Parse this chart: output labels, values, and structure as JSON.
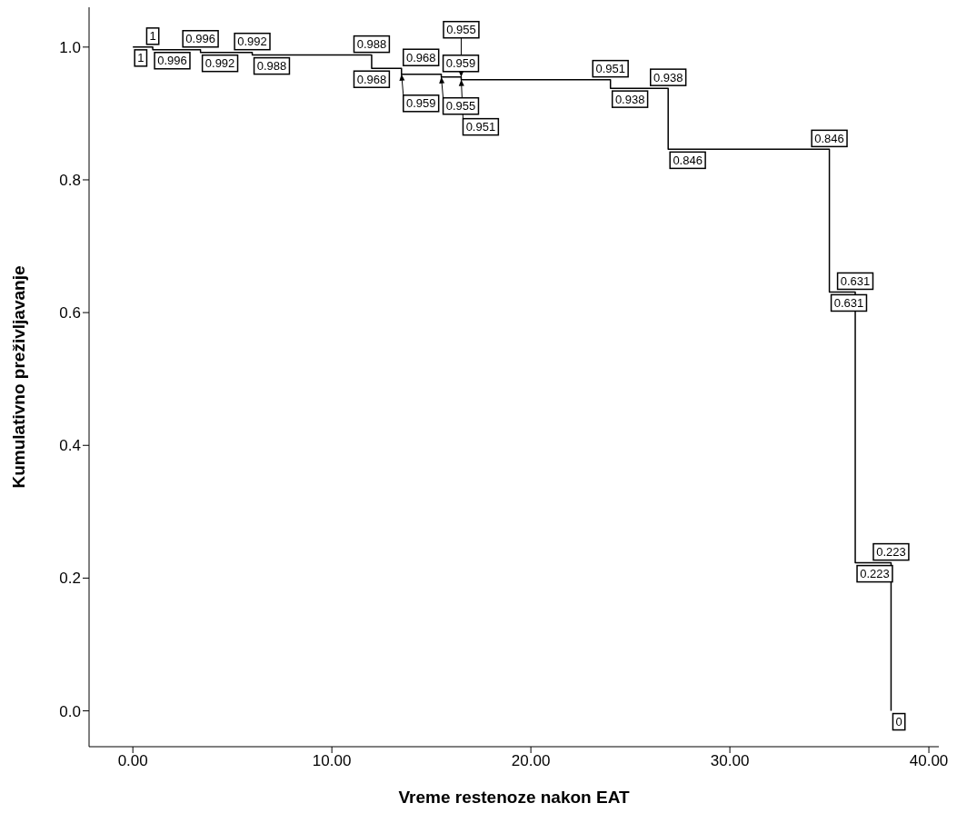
{
  "chart_data": {
    "type": "step",
    "xlabel": "Vreme restenoze nakon EAT",
    "ylabel": "Kumulativno preživljavanje",
    "x": [
      0,
      1.0,
      3.4,
      6.0,
      12.0,
      13.5,
      15.5,
      16.5,
      24.0,
      26.9,
      35.0,
      36.3,
      38.1
    ],
    "values": [
      1,
      0.996,
      0.992,
      0.988,
      0.968,
      0.959,
      0.955,
      0.951,
      0.938,
      0.846,
      0.631,
      0.223,
      0
    ],
    "color": "#000000",
    "marker": "none",
    "line_style": "solid",
    "grid": false,
    "legend": false,
    "xlim": [
      -2.2,
      40.5
    ],
    "xticks": [
      {
        "value": 0,
        "label": "0.00"
      },
      {
        "value": 10,
        "label": "10.00"
      },
      {
        "value": 20,
        "label": "20.00"
      },
      {
        "value": 30,
        "label": "30.00"
      },
      {
        "value": 40,
        "label": "40.00"
      }
    ],
    "ylim": [
      -0.054,
      1.06
    ],
    "yticks": [
      {
        "value": 0,
        "label": "0.0"
      },
      {
        "value": 0.2,
        "label": "0.2"
      },
      {
        "value": 0.4,
        "label": "0.4"
      },
      {
        "value": 0.6,
        "label": "0.6"
      },
      {
        "value": 0.8,
        "label": "0.8"
      },
      {
        "value": 1,
        "label": "1.0"
      }
    ],
    "annotations": [
      {
        "text": "1",
        "x": 0,
        "y": 1
      },
      {
        "text": "1",
        "x": 1.0,
        "y": 1
      },
      {
        "text": "0.996",
        "x": 1.0,
        "y": 0.996
      },
      {
        "text": "0.996",
        "x": 3.4,
        "y": 0.996
      },
      {
        "text": "0.992",
        "x": 3.4,
        "y": 0.992
      },
      {
        "text": "0.992",
        "x": 6.0,
        "y": 0.992
      },
      {
        "text": "0.988",
        "x": 6.0,
        "y": 0.988
      },
      {
        "text": "0.988",
        "x": 12.0,
        "y": 0.988
      },
      {
        "text": "0.968",
        "x": 12.0,
        "y": 0.968
      },
      {
        "text": "0.968",
        "x": 13.5,
        "y": 0.968
      },
      {
        "text": "0.959",
        "x": 13.5,
        "y": 0.959
      },
      {
        "text": "0.959",
        "x": 15.5,
        "y": 0.959
      },
      {
        "text": "0.955",
        "x": 15.5,
        "y": 0.955
      },
      {
        "text": "0.955",
        "x": 16.5,
        "y": 0.955
      },
      {
        "text": "0.951",
        "x": 16.5,
        "y": 0.951
      },
      {
        "text": "0.951",
        "x": 24.0,
        "y": 0.951
      },
      {
        "text": "0.938",
        "x": 24.0,
        "y": 0.938
      },
      {
        "text": "0.938",
        "x": 26.9,
        "y": 0.938
      },
      {
        "text": "0.846",
        "x": 26.9,
        "y": 0.846
      },
      {
        "text": "0.846",
        "x": 35.0,
        "y": 0.846
      },
      {
        "text": "0.631",
        "x": 35.0,
        "y": 0.631
      },
      {
        "text": "0.631",
        "x": 36.3,
        "y": 0.631
      },
      {
        "text": "0.223",
        "x": 36.3,
        "y": 0.223
      },
      {
        "text": "0.223",
        "x": 38.1,
        "y": 0.223
      },
      {
        "text": "0",
        "x": 38.1,
        "y": 0
      }
    ]
  }
}
